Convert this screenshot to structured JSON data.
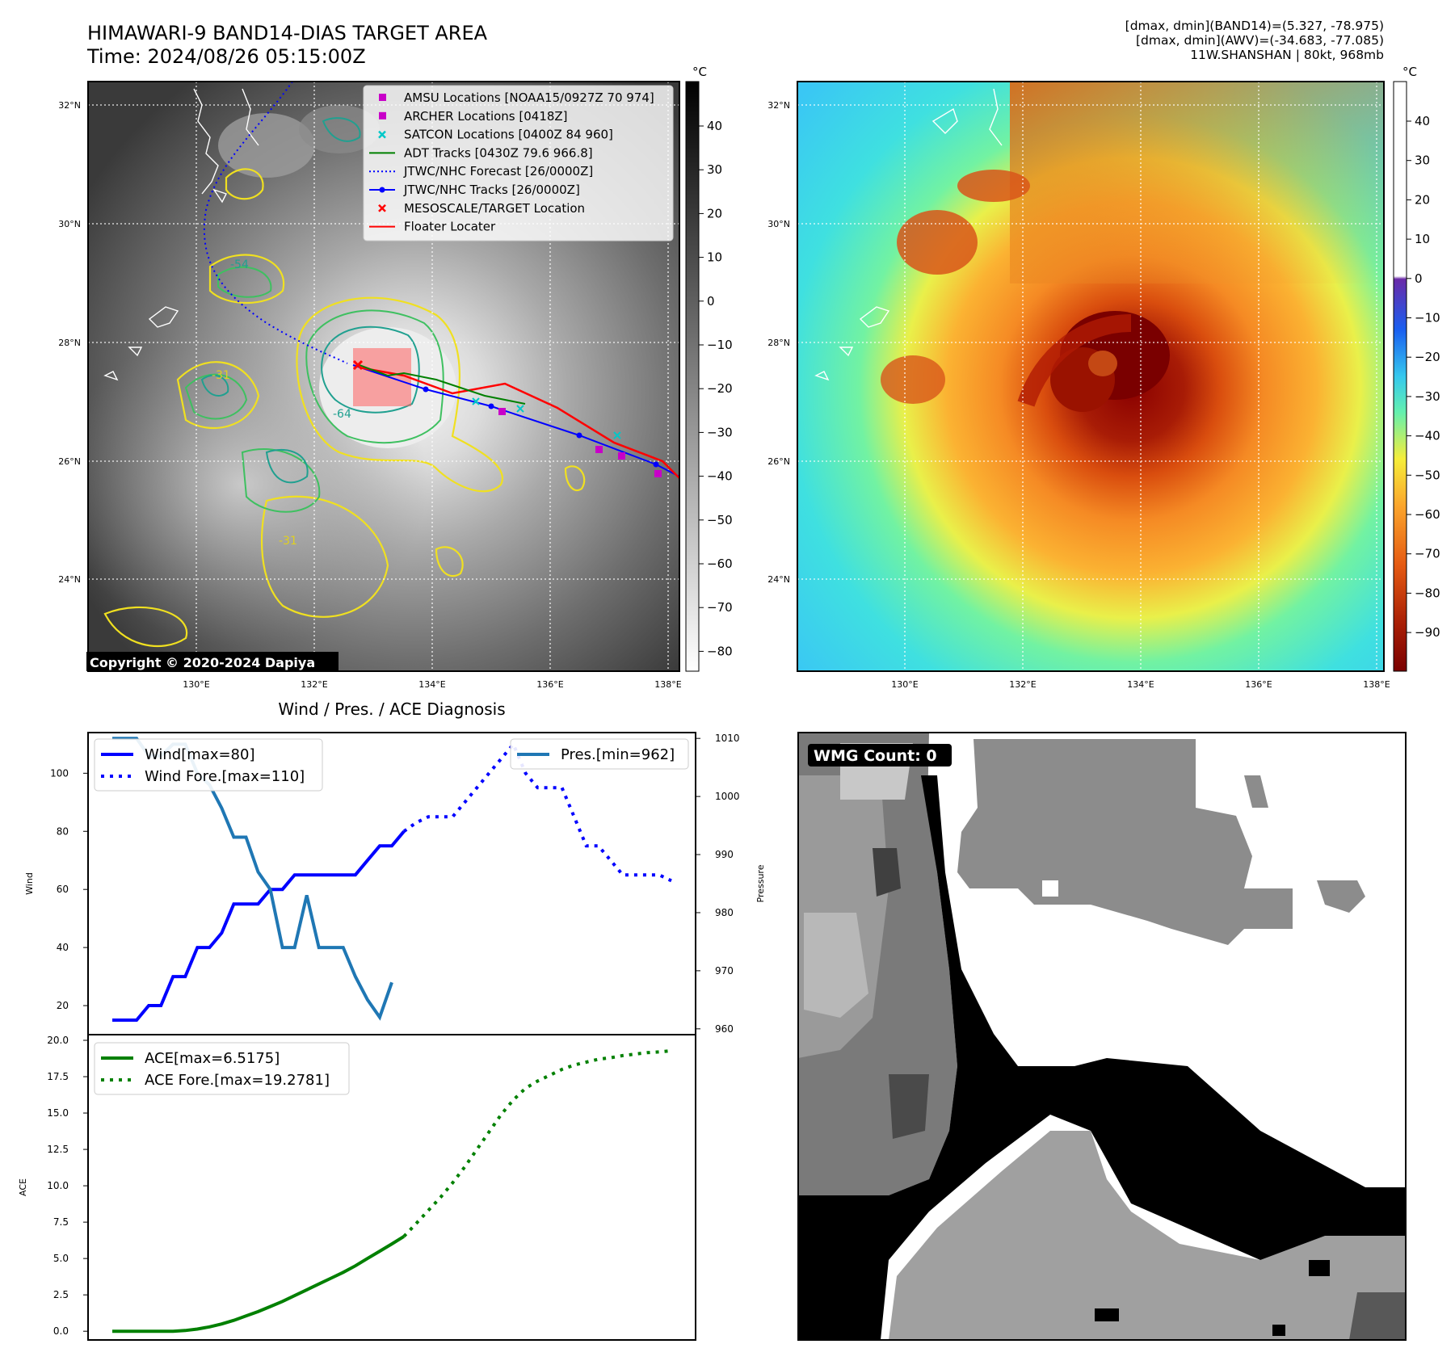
{
  "header": {
    "title_line1": "HIMAWARI-9 BAND14-DIAS TARGET AREA",
    "title_line2": "Time: 2024/08/26 05:15:00Z",
    "info_line1": "[dmax, dmin](BAND14)=(5.327, -78.975)",
    "info_line2": "[dmax, dmin](AWV)=(-34.683, -77.085)",
    "info_line3": "11W.SHANSHAN | 80kt, 968mb"
  },
  "maps": {
    "lat_labels": [
      "32°N",
      "30°N",
      "28°N",
      "26°N",
      "24°N"
    ],
    "lon_labels": [
      "130°E",
      "132°E",
      "134°E",
      "136°E",
      "138°E"
    ],
    "copyright": "Copyright © 2020-2024 Dapiya",
    "legend": [
      {
        "label": "AMSU Locations [NOAA15/0927Z 70 974]",
        "color": "#c800c8",
        "marker": "square"
      },
      {
        "label": "ARCHER Locations [0418Z]",
        "color": "#c800c8",
        "marker": "square"
      },
      {
        "label": "SATCON Locations [0400Z 84 960]",
        "color": "#00c8c8",
        "marker": "x"
      },
      {
        "label": "ADT Tracks [0430Z 79.6 966.8]",
        "color": "#008000",
        "marker": "line"
      },
      {
        "label": "JTWC/NHC Forecast [26/0000Z]",
        "color": "#0000ff",
        "marker": "dotted"
      },
      {
        "label": "JTWC/NHC Tracks [26/0000Z]",
        "color": "#0000ff",
        "marker": "line-dot"
      },
      {
        "label": "MESOSCALE/TARGET Location",
        "color": "#ff0000",
        "marker": "x"
      },
      {
        "label": "Floater Locater",
        "color": "#ff0000",
        "marker": "line"
      }
    ],
    "contour_labels": [
      "-64",
      "-31",
      "-31",
      "-54"
    ],
    "colorbar_left": {
      "unit": "°C",
      "ticks": [
        "40",
        "30",
        "20",
        "10",
        "0",
        "−10",
        "−20",
        "−30",
        "−40",
        "−50",
        "−60",
        "−70",
        "−80"
      ]
    },
    "colorbar_right": {
      "unit": "°C",
      "ticks": [
        "40",
        "30",
        "20",
        "10",
        "0",
        "−10",
        "−20",
        "−30",
        "−40",
        "−50",
        "−60",
        "−70",
        "−80",
        "−90"
      ]
    }
  },
  "diagnosis": {
    "title": "Wind / Pres. / ACE Diagnosis",
    "wmg_label": "WMG Count: 0"
  },
  "chart_data": [
    {
      "type": "line",
      "title": "Wind / Pres. / ACE Diagnosis",
      "ylabel": "Wind",
      "y2label": "Pressure",
      "ylim": [
        10,
        114
      ],
      "y2lim": [
        959,
        1011
      ],
      "y_ticks": [
        "20",
        "40",
        "60",
        "80",
        "100"
      ],
      "y2_ticks": [
        "960",
        "970",
        "980",
        "990",
        "1000",
        "1010"
      ],
      "series": [
        {
          "name": "Wind[max=80]",
          "color": "#0000ff",
          "style": "solid",
          "axis": "left",
          "values": [
            15,
            15,
            15,
            20,
            20,
            30,
            30,
            40,
            40,
            45,
            55,
            55,
            55,
            60,
            60,
            65,
            65,
            65,
            65,
            65,
            65,
            70,
            75,
            75,
            80
          ]
        },
        {
          "name": "Wind Fore.[max=110]",
          "color": "#0000ff",
          "style": "dotted",
          "axis": "left",
          "x_start": 24,
          "values": [
            80,
            83,
            85,
            85,
            85,
            90,
            95,
            100,
            105,
            110,
            100,
            95,
            95,
            95,
            85,
            75,
            75,
            70,
            65,
            65,
            65,
            65,
            63
          ]
        },
        {
          "name": "Pres.[min=962]",
          "color": "#1f77b4",
          "style": "solid",
          "axis": "right",
          "values": [
            1010,
            1010,
            1010,
            1007,
            1007,
            1009,
            1009,
            1004,
            1002,
            998,
            993,
            993,
            987,
            984,
            974,
            974,
            983,
            974,
            974,
            974,
            969,
            965,
            962,
            968
          ]
        }
      ]
    },
    {
      "type": "line",
      "ylabel": "ACE",
      "ylim": [
        -0.6,
        20
      ],
      "y_ticks": [
        "0.0",
        "2.5",
        "5.0",
        "7.5",
        "10.0",
        "12.5",
        "15.0",
        "17.5",
        "20.0"
      ],
      "series": [
        {
          "name": "ACE[max=6.5175]",
          "color": "#008000",
          "style": "solid",
          "values": [
            0,
            0,
            0,
            0,
            0,
            0,
            0.05,
            0.15,
            0.3,
            0.5,
            0.75,
            1.05,
            1.35,
            1.7,
            2.05,
            2.45,
            2.85,
            3.25,
            3.65,
            4.05,
            4.5,
            5.0,
            5.5,
            6.0,
            6.5175
          ]
        },
        {
          "name": "ACE Fore.[max=19.2781]",
          "color": "#008000",
          "style": "dotted",
          "x_start": 24,
          "values": [
            6.5175,
            7.4,
            8.3,
            9.2,
            10.2,
            11.3,
            12.5,
            13.7,
            14.9,
            15.9,
            16.7,
            17.2,
            17.6,
            18.0,
            18.3,
            18.5,
            18.7,
            18.8,
            18.95,
            19.05,
            19.15,
            19.2,
            19.2781
          ]
        }
      ]
    }
  ]
}
